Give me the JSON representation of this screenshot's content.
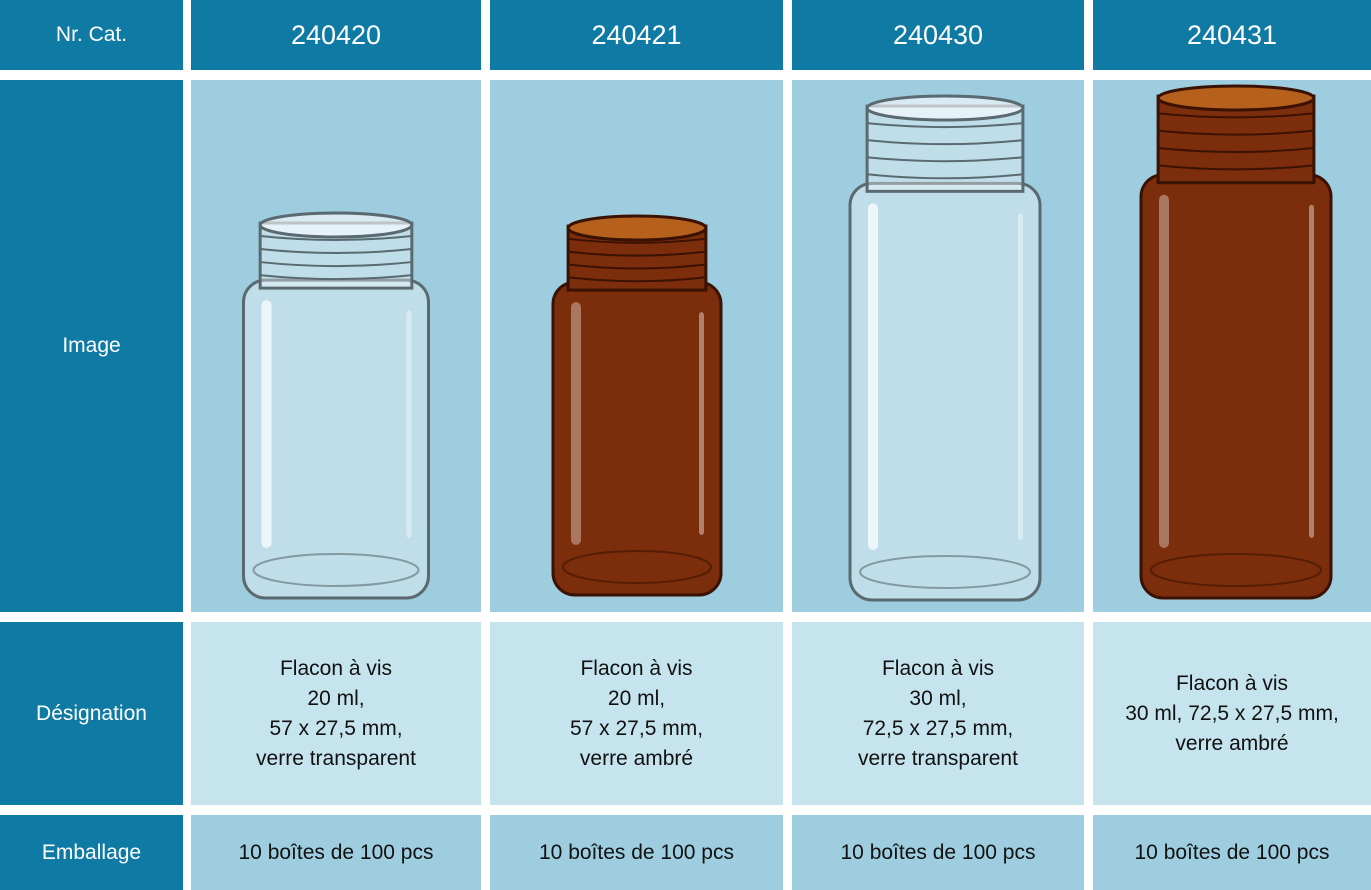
{
  "table": {
    "header": [
      "Nr. Cat.",
      "240420",
      "240421",
      "240430",
      "240431"
    ],
    "rows": [
      [
        "Image"
      ],
      [
        "Désignation",
        [
          "Flacon à vis",
          "20 ml,",
          "57 x 27,5 mm,",
          "verre transparent"
        ],
        [
          "Flacon à vis",
          "20 ml,",
          "57 x 27,5 mm,",
          "verre ambré"
        ],
        [
          "Flacon à vis",
          "30 ml,",
          "72,5 x 27,5 mm,",
          "verre transparent"
        ],
        [
          "Flacon à vis",
          "30 ml, 72,5 x 27,5 mm,",
          "verre ambré"
        ]
      ],
      [
        "Emballage",
        "10 boîtes de 100 pcs",
        "10 boîtes de 100 pcs",
        "10 boîtes de 100 pcs",
        "10 boîtes de 100 pcs"
      ]
    ]
  }
}
